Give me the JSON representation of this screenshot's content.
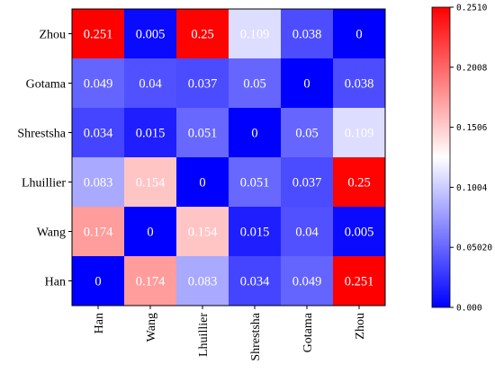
{
  "chart_data": {
    "type": "heatmap",
    "rows": [
      "Zhou",
      "Gotama",
      "Shrestsha",
      "Lhuillier",
      "Wang",
      "Han"
    ],
    "columns": [
      "Han",
      "Wang",
      "Lhuillier",
      "Shrestsha",
      "Gotama",
      "Zhou"
    ],
    "values": [
      [
        0.251,
        0.005,
        0.25,
        0.109,
        0.038,
        0
      ],
      [
        0.049,
        0.04,
        0.037,
        0.05,
        0,
        0.038
      ],
      [
        0.034,
        0.015,
        0.051,
        0,
        0.05,
        0.109
      ],
      [
        0.083,
        0.154,
        0,
        0.051,
        0.037,
        0.25
      ],
      [
        0.174,
        0,
        0.154,
        0.015,
        0.04,
        0.005
      ],
      [
        0,
        0.174,
        0.083,
        0.034,
        0.049,
        0.251
      ]
    ],
    "value_labels": [
      [
        "0.251",
        "0.005",
        "0.25",
        "0.109",
        "0.038",
        "0"
      ],
      [
        "0.049",
        "0.04",
        "0.037",
        "0.05",
        "0",
        "0.038"
      ],
      [
        "0.034",
        "0.015",
        "0.051",
        "0",
        "0.05",
        "0.109"
      ],
      [
        "0.083",
        "0.154",
        "0",
        "0.051",
        "0.037",
        "0.25"
      ],
      [
        "0.174",
        "0",
        "0.154",
        "0.015",
        "0.04",
        "0.005"
      ],
      [
        "0",
        "0.174",
        "0.083",
        "0.034",
        "0.049",
        "0.251"
      ]
    ],
    "colorbar": {
      "min": 0,
      "max": 0.251,
      "tick_values": [
        0,
        0.0502,
        0.1004,
        0.1506,
        0.2008,
        0.251
      ],
      "tick_labels": [
        "0.000",
        "0.05020",
        "0.1004",
        "0.1506",
        "0.2008",
        "0.2510"
      ],
      "colors": {
        "low": "#0000ff",
        "mid": "#ffffff",
        "high": "#ff0000"
      }
    }
  }
}
